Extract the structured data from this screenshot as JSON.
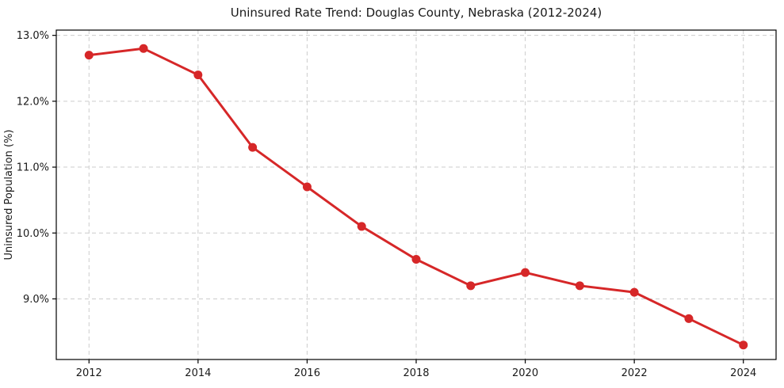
{
  "chart_data": {
    "type": "line",
    "title": "Uninsured Rate Trend: Douglas County, Nebraska (2012-2024)",
    "xlabel": "",
    "ylabel": "Uninsured Population (%)",
    "x": [
      2012,
      2013,
      2014,
      2015,
      2016,
      2017,
      2018,
      2019,
      2020,
      2021,
      2022,
      2023,
      2024
    ],
    "values": [
      12.7,
      12.8,
      12.4,
      11.3,
      10.7,
      10.1,
      9.6,
      9.2,
      9.4,
      9.2,
      9.1,
      8.7,
      8.3
    ],
    "xlim": [
      2011.4,
      2024.6
    ],
    "ylim": [
      8.08,
      13.08
    ],
    "xticks": [
      2012,
      2014,
      2016,
      2018,
      2020,
      2022,
      2024
    ],
    "xtick_labels": [
      "2012",
      "2014",
      "2016",
      "2018",
      "2020",
      "2022",
      "2024"
    ],
    "yticks": [
      9,
      10,
      11,
      12,
      13
    ],
    "ytick_labels": [
      "9.0%",
      "10.0%",
      "11.0%",
      "12.0%",
      "13.0%"
    ],
    "grid": true,
    "grid_style": "dashed",
    "legend": "none",
    "colors": {
      "line": "#d62728",
      "marker": "#d62728",
      "grid": "#cccccc",
      "spine": "#000000",
      "text": "#1a1a1a"
    }
  }
}
